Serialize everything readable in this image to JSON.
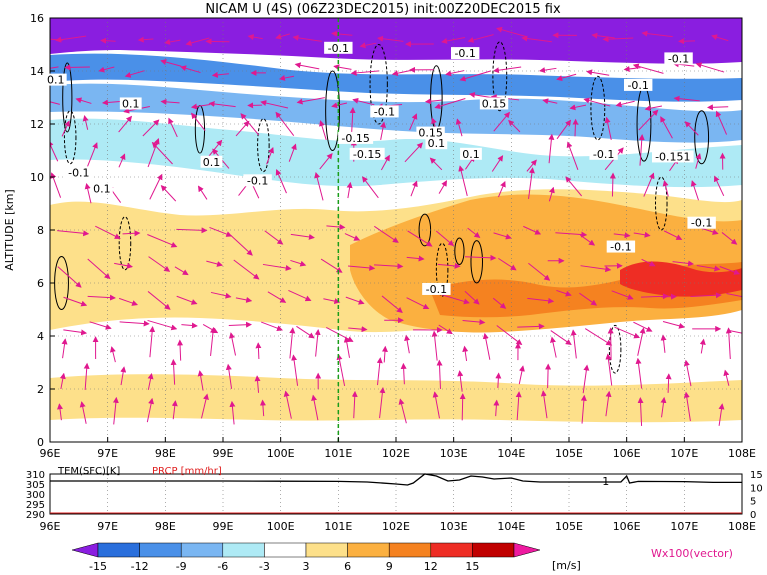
{
  "title": "NICAM U (4S) (06Z23DEC2015) init:00Z20DEC2015 fix",
  "ylabel": "ALTITUDE [km]",
  "colorbar_unit": "[m/s]",
  "vector_label": "Wx100(vector)",
  "marker_lon": 101,
  "chart_data": [
    {
      "type": "heatmap",
      "variable": "zonal wind U with vertical-zonal wind vectors",
      "x": {
        "min": 96,
        "max": 108,
        "ticks": [
          "96E",
          "97E",
          "98E",
          "99E",
          "100E",
          "101E",
          "102E",
          "103E",
          "104E",
          "105E",
          "106E",
          "107E",
          "108E"
        ]
      },
      "y": {
        "min": 0,
        "max": 16,
        "ticks": [
          "0",
          "2",
          "4",
          "6",
          "8",
          "10",
          "12",
          "14",
          "16"
        ]
      },
      "ylabel": "ALTITUDE [km]",
      "colorbar": {
        "levels": [
          -15,
          -12,
          -9,
          -6,
          -3,
          3,
          6,
          9,
          12,
          15
        ],
        "tick_labels": [
          "-15",
          "-12",
          "-9",
          "-6",
          "-3",
          "3",
          "6",
          "9",
          "12",
          "15"
        ],
        "colors": [
          "#8a1ee0",
          "#2a6fdc",
          "#4a90e8",
          "#7ab6f2",
          "#aeeaf5",
          "#ffffff",
          "#fde08a",
          "#fbb040",
          "#f58220",
          "#ee2d24",
          "#c00000",
          "#ee1aa0"
        ]
      },
      "grid": true,
      "contour_labels": [
        {
          "text": "-0.1",
          "lon": 101.0,
          "alt": 14.8
        },
        {
          "text": "-0.1",
          "lon": 103.2,
          "alt": 14.6
        },
        {
          "text": "-0.1",
          "lon": 106.9,
          "alt": 14.4
        },
        {
          "text": "-0.1",
          "lon": 106.2,
          "alt": 13.4
        },
        {
          "text": "0.1",
          "lon": 97.4,
          "alt": 12.7
        },
        {
          "text": "-0.1",
          "lon": 101.8,
          "alt": 12.4
        },
        {
          "text": "0.15",
          "lon": 103.7,
          "alt": 12.7
        },
        {
          "text": "-0.15",
          "lon": 101.3,
          "alt": 11.4
        },
        {
          "text": "0.15",
          "lon": 102.6,
          "alt": 11.6
        },
        {
          "text": "0.1",
          "lon": 102.7,
          "alt": 11.2
        },
        {
          "text": "-0.15",
          "lon": 101.5,
          "alt": 10.8
        },
        {
          "text": "0.1",
          "lon": 103.3,
          "alt": 10.8
        },
        {
          "text": "-0.1",
          "lon": 105.6,
          "alt": 10.8
        },
        {
          "text": "-0.151",
          "lon": 106.8,
          "alt": 10.7
        },
        {
          "text": "0.1",
          "lon": 98.8,
          "alt": 10.5
        },
        {
          "text": "-0.1",
          "lon": 96.5,
          "alt": 10.1
        },
        {
          "text": "-0.1",
          "lon": 99.6,
          "alt": 9.8
        },
        {
          "text": "0.1",
          "lon": 96.9,
          "alt": 9.5
        },
        {
          "text": "-0.1",
          "lon": 107.3,
          "alt": 8.2
        },
        {
          "text": "-0.1",
          "lon": 105.9,
          "alt": 7.3
        },
        {
          "text": "-0.1",
          "lon": 102.7,
          "alt": 5.7
        },
        {
          "text": "0.1",
          "lon": 96.1,
          "alt": 13.6
        }
      ]
    },
    {
      "type": "line",
      "x": {
        "min": 96,
        "max": 108,
        "ticks": [
          "96E",
          "97E",
          "98E",
          "99E",
          "100E",
          "101E",
          "102E",
          "103E",
          "104E",
          "105E",
          "106E",
          "107E",
          "108E"
        ]
      },
      "left_axis": {
        "label": "TEM(SFC)[K]",
        "ticks": [
          "310",
          "305",
          "300",
          "295",
          "290"
        ]
      },
      "right_axis": {
        "label": "PRCP [mm/hr]",
        "ticks": [
          "15",
          "10",
          "5",
          "0"
        ]
      },
      "series": [
        {
          "name": "TEM(SFC)[K]",
          "points": [
            [
              96,
              306.5
            ],
            [
              97,
              306.5
            ],
            [
              98,
              306.5
            ],
            [
              99,
              306.5
            ],
            [
              100,
              306.4
            ],
            [
              101,
              306.3
            ],
            [
              101.5,
              306.0
            ],
            [
              102,
              305.0
            ],
            [
              102.2,
              304.5
            ],
            [
              102.3,
              305.5
            ],
            [
              102.5,
              310.0
            ],
            [
              102.7,
              309.0
            ],
            [
              102.9,
              306.5
            ],
            [
              103.1,
              307.0
            ],
            [
              103.3,
              309.0
            ],
            [
              103.5,
              308.5
            ],
            [
              103.7,
              307.5
            ],
            [
              104,
              308.0
            ],
            [
              104.2,
              306.5
            ],
            [
              104.5,
              306.0
            ],
            [
              105,
              306.0
            ],
            [
              105.5,
              306.0
            ],
            [
              105.9,
              306.0
            ],
            [
              106.0,
              309.0
            ],
            [
              106.05,
              305.5
            ],
            [
              106.2,
              306.3
            ],
            [
              107,
              306.2
            ],
            [
              107.5,
              305.8
            ],
            [
              108,
              305.8
            ]
          ]
        },
        {
          "name": "PRCP [mm/hr]",
          "points": [
            [
              96,
              0
            ],
            [
              108,
              0
            ]
          ]
        }
      ],
      "annotations": [
        {
          "text": "1",
          "lon": 105.75,
          "val": 306.5
        }
      ]
    }
  ]
}
